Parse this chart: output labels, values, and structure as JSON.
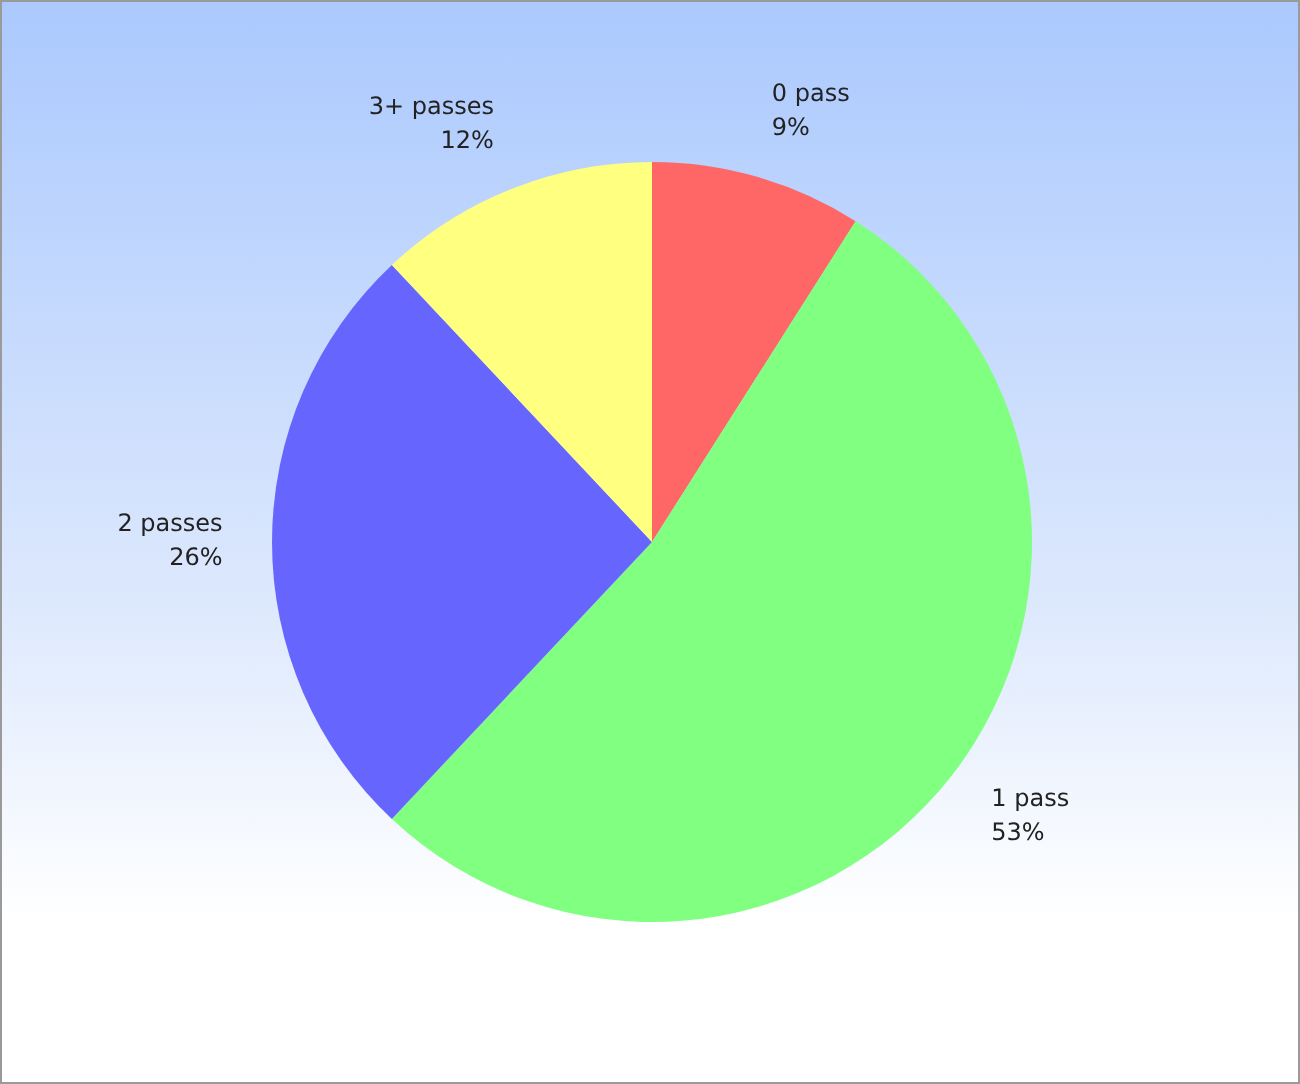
{
  "chart_data": {
    "type": "pie",
    "categories": [
      "0 pass",
      "1 pass",
      "2 passes",
      "3+ passes"
    ],
    "values": [
      9,
      53,
      26,
      12
    ],
    "value_labels": [
      "9%",
      "53%",
      "26%",
      "12%"
    ],
    "colors": [
      "#ff6666",
      "#80ff80",
      "#6666ff",
      "#ffff80"
    ]
  }
}
